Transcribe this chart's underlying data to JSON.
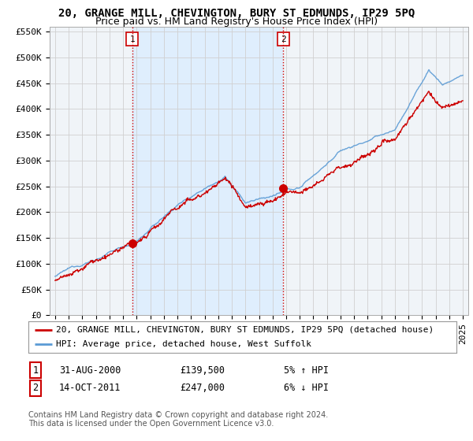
{
  "title": "20, GRANGE MILL, CHEVINGTON, BURY ST EDMUNDS, IP29 5PQ",
  "subtitle": "Price paid vs. HM Land Registry's House Price Index (HPI)",
  "ylim": [
    0,
    560000
  ],
  "yticks": [
    0,
    50000,
    100000,
    150000,
    200000,
    250000,
    300000,
    350000,
    400000,
    450000,
    500000,
    550000
  ],
  "ytick_labels": [
    "£0",
    "£50K",
    "£100K",
    "£150K",
    "£200K",
    "£250K",
    "£300K",
    "£350K",
    "£400K",
    "£450K",
    "£500K",
    "£550K"
  ],
  "hpi_color": "#5b9bd5",
  "price_color": "#cc0000",
  "vline_color": "#cc0000",
  "shade_color": "#ddeeff",
  "background_color": "#ffffff",
  "chart_bg_color": "#f0f4f8",
  "grid_color": "#d0d0d0",
  "sale1_year": 2000.67,
  "sale1_price": 139500,
  "sale1_label": "1",
  "sale2_year": 2011.79,
  "sale2_price": 247000,
  "sale2_label": "2",
  "legend_label1": "20, GRANGE MILL, CHEVINGTON, BURY ST EDMUNDS, IP29 5PQ (detached house)",
  "legend_label2": "HPI: Average price, detached house, West Suffolk",
  "table_row1": [
    "1",
    "31-AUG-2000",
    "£139,500",
    "5% ↑ HPI"
  ],
  "table_row2": [
    "2",
    "14-OCT-2011",
    "£247,000",
    "6% ↓ HPI"
  ],
  "footer1": "Contains HM Land Registry data © Crown copyright and database right 2024.",
  "footer2": "This data is licensed under the Open Government Licence v3.0.",
  "title_fontsize": 10,
  "subtitle_fontsize": 9,
  "tick_fontsize": 8,
  "legend_fontsize": 8,
  "footer_fontsize": 7
}
